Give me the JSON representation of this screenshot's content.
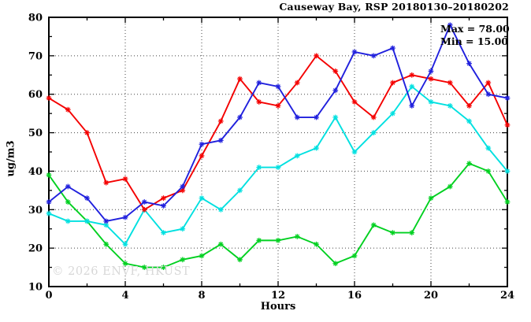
{
  "chart_data": {
    "type": "line",
    "title": "Causeway Bay, RSP 20180130–20180202",
    "xlabel": "Hours",
    "ylabel": "ug/m3",
    "xlim": [
      0,
      24
    ],
    "ylim": [
      10,
      80
    ],
    "x_major_ticks": [
      0,
      4,
      8,
      12,
      16,
      20,
      24
    ],
    "x_minor_step": 2,
    "y_major_ticks": [
      10,
      20,
      30,
      40,
      50,
      60,
      70,
      80
    ],
    "y_minor_step": 5,
    "grid": true,
    "legend": "none",
    "marker": "asterisk",
    "x": [
      0,
      1,
      2,
      3,
      4,
      5,
      6,
      7,
      8,
      9,
      10,
      11,
      12,
      13,
      14,
      15,
      16,
      17,
      18,
      19,
      20,
      21,
      22,
      23,
      24
    ],
    "series": [
      {
        "name": "green-series",
        "color": "#00d020",
        "values": [
          39,
          32,
          27,
          21,
          16,
          15,
          15,
          17,
          18,
          21,
          17,
          22,
          22,
          23,
          21,
          16,
          18,
          26,
          24,
          24,
          33,
          36,
          42,
          40,
          32
        ]
      },
      {
        "name": "cyan-series",
        "color": "#00e0e0",
        "values": [
          29,
          27,
          27,
          26,
          21,
          30,
          24,
          25,
          33,
          30,
          35,
          41,
          41,
          44,
          46,
          54,
          45,
          50,
          55,
          62,
          58,
          57,
          53,
          46,
          40
        ]
      },
      {
        "name": "red-series",
        "color": "#f40000",
        "values": [
          59,
          56,
          50,
          37,
          38,
          30,
          33,
          35,
          44,
          53,
          64,
          58,
          57,
          63,
          70,
          66,
          58,
          54,
          63,
          65,
          64,
          63,
          57,
          63,
          52
        ]
      },
      {
        "name": "blue-series",
        "color": "#2020dd",
        "values": [
          32,
          36,
          33,
          27,
          28,
          32,
          31,
          36,
          47,
          48,
          54,
          63,
          62,
          54,
          54,
          61,
          71,
          70,
          72,
          57,
          66,
          78,
          68,
          60,
          59
        ]
      }
    ],
    "annotations": {
      "max_label": "Max = 78.00",
      "min_label": "Min = 15.00"
    }
  },
  "watermark": "© 2026 ENVF, HKUST",
  "colors": {
    "axis": "#000000",
    "grid": "#444444",
    "watermark": "#d8d8d8"
  }
}
